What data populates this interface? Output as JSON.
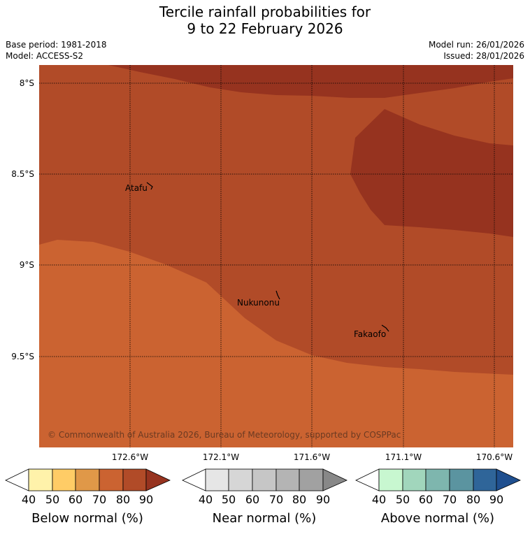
{
  "title": {
    "line1": "Tercile rainfall probabilities for",
    "line2": "9 to 22 February 2026"
  },
  "meta": {
    "base_period": "Base period: 1981-2018",
    "model": "Model: ACCESS-S2",
    "model_run": "Model run: 26/01/2026",
    "issued": "Issued: 28/01/2026"
  },
  "map": {
    "lat_labels": [
      "8°S",
      "8.5°S",
      "9°S",
      "9.5°S"
    ],
    "lon_labels": [
      "172.6°W",
      "172.1°W",
      "171.6°W",
      "171.1°W",
      "170.6°W"
    ],
    "places": [
      {
        "name": "Atafu"
      },
      {
        "name": "Nukunonu"
      },
      {
        "name": "Fakaofo"
      }
    ],
    "copyright": "© Commonwealth of Australia 2026, Bureau of Meteorology, supported by COSPPac",
    "colors": {
      "below_70": "#cb6331",
      "below_80": "#b14b28",
      "below_90": "#96331f"
    }
  },
  "colorbars": [
    {
      "title": "Below normal (%)",
      "ticks": [
        "40",
        "50",
        "60",
        "70",
        "80",
        "90"
      ],
      "colors": [
        "#fff2aa",
        "#ffcc66",
        "#e09848",
        "#cb6331",
        "#b14b28",
        "#96331f"
      ]
    },
    {
      "title": "Near normal (%)",
      "ticks": [
        "40",
        "50",
        "60",
        "70",
        "80",
        "90"
      ],
      "colors": [
        "#e6e6e6",
        "#d6d6d6",
        "#c6c6c6",
        "#b4b4b4",
        "#a1a1a1",
        "#888888"
      ]
    },
    {
      "title": "Above normal (%)",
      "ticks": [
        "40",
        "50",
        "60",
        "70",
        "80",
        "90"
      ],
      "colors": [
        "#c8f7d0",
        "#a1d6bc",
        "#7eb6ae",
        "#5b94a0",
        "#2f6599",
        "#1f4f8f"
      ]
    }
  ]
}
